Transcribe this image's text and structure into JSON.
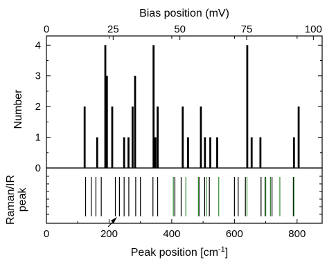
{
  "chart_data": [
    {
      "type": "bar",
      "panel": "histogram",
      "ylabel": "Number",
      "top_axis_label": "Bias position (mV)",
      "top_ticks": [
        0,
        25,
        50,
        75,
        100
      ],
      "xlim": [
        0,
        880
      ],
      "ylim": [
        0,
        4.3
      ],
      "yticks": [
        0,
        1,
        2,
        3,
        4
      ],
      "grid": false,
      "bars": [
        {
          "x": 122,
          "value": 2
        },
        {
          "x": 162,
          "value": 1
        },
        {
          "x": 188,
          "value": 4
        },
        {
          "x": 193,
          "value": 3
        },
        {
          "x": 210,
          "value": 2
        },
        {
          "x": 248,
          "value": 1
        },
        {
          "x": 262,
          "value": 1
        },
        {
          "x": 275,
          "value": 2
        },
        {
          "x": 283,
          "value": 3
        },
        {
          "x": 342,
          "value": 4
        },
        {
          "x": 348,
          "value": 1
        },
        {
          "x": 355,
          "value": 2
        },
        {
          "x": 435,
          "value": 2
        },
        {
          "x": 452,
          "value": 1
        },
        {
          "x": 493,
          "value": 2
        },
        {
          "x": 506,
          "value": 1
        },
        {
          "x": 523,
          "value": 1
        },
        {
          "x": 545,
          "value": 1
        },
        {
          "x": 641,
          "value": 4
        },
        {
          "x": 655,
          "value": 1
        },
        {
          "x": 683,
          "value": 1
        },
        {
          "x": 790,
          "value": 1
        },
        {
          "x": 805,
          "value": 2
        }
      ]
    },
    {
      "type": "bar",
      "panel": "raman-ir",
      "ylabel_lines": [
        "Raman/IR",
        "peak"
      ],
      "xlabel": "Peak position [cm",
      "xlabel_sup": "-1",
      "xlabel_end": "]",
      "xticks": [
        0,
        200,
        400,
        600,
        800
      ],
      "xlim": [
        0,
        880
      ],
      "colors": {
        "raman": "#000000",
        "ir": "#2e8b2e"
      },
      "raman_peaks": [
        125,
        143,
        158,
        175,
        220,
        233,
        248,
        263,
        285,
        300,
        340,
        355,
        410,
        430,
        487,
        505,
        520,
        600,
        612,
        635,
        685,
        698,
        720,
        788
      ],
      "ir_peaks": [
        405,
        445,
        485,
        510,
        550,
        640,
        700,
        715,
        745,
        790
      ],
      "annotation": "arrow-at-200"
    }
  ]
}
